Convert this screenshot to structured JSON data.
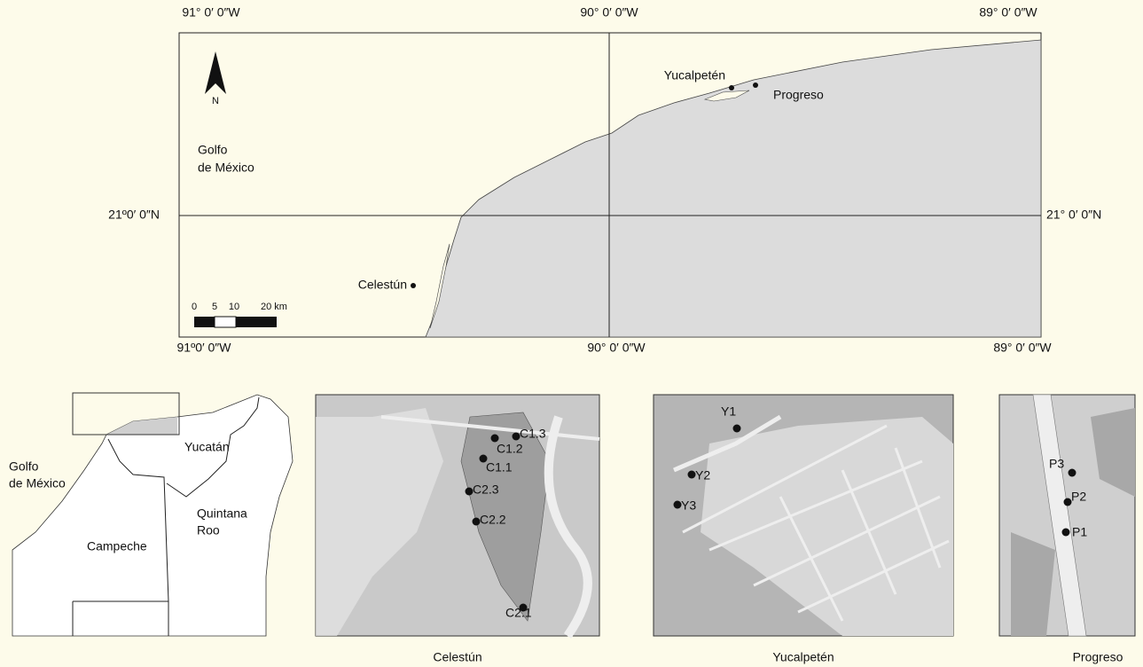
{
  "main_map": {
    "top_labels": [
      "91° 0′ 0″W",
      "90° 0′ 0″W",
      "89° 0′ 0″W"
    ],
    "bottom_labels": [
      "91º0′ 0″W",
      "90° 0′ 0″W",
      "89° 0′ 0″W"
    ],
    "left_label": "21º0′ 0″N",
    "right_label": "21° 0′ 0″N",
    "north": "N",
    "sea": [
      "Golfo",
      "de México"
    ],
    "places": [
      "Yucalpetén",
      "Progreso",
      "Celestún"
    ],
    "scale": [
      "0",
      "5",
      "10",
      "20 km"
    ]
  },
  "locator_map": {
    "labels": [
      "Golfo",
      "de México",
      "Yucatán",
      "Campeche",
      "Quintana",
      "Roo"
    ]
  },
  "insets": [
    {
      "caption": "Celestún",
      "points": [
        "C1.3",
        "C1.2",
        "C1.1",
        "C2.3",
        "C2.2",
        "C2.1"
      ]
    },
    {
      "caption": "Yucalpetén",
      "points": [
        "Y1",
        "Y2",
        "Y3"
      ]
    },
    {
      "caption": "Progreso",
      "points": [
        "P3",
        "P2",
        "P1"
      ]
    }
  ]
}
